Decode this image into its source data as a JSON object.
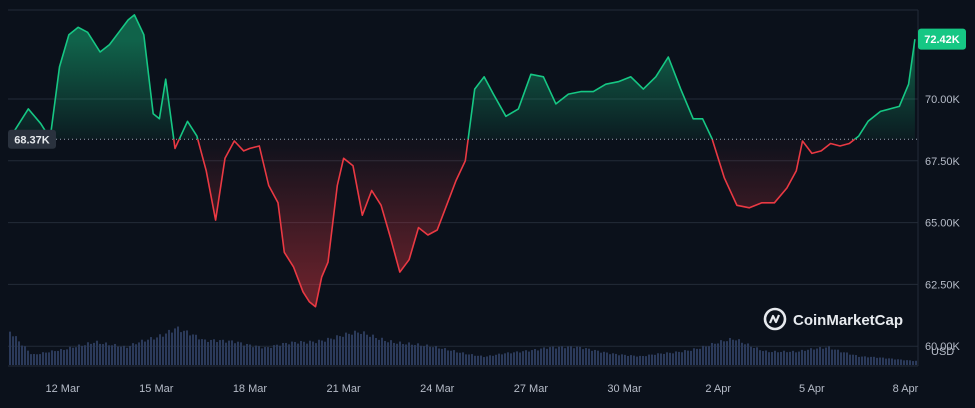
{
  "chart_data": {
    "type": "area",
    "subtitle": "",
    "currency_label": "USD",
    "reference_value": 68370,
    "reference_label": "68.37K",
    "current_value": 72420,
    "current_label": "72.42K",
    "y_axis": {
      "ticks": [
        60000,
        62500,
        65000,
        67500,
        70000
      ],
      "tick_labels": [
        "60.00K",
        "62.50K",
        "65.00K",
        "67.50K",
        "70.00K"
      ],
      "ylim": [
        59200,
        73600
      ]
    },
    "x_axis": {
      "tick_labels": [
        "12 Mar",
        "15 Mar",
        "18 Mar",
        "21 Mar",
        "24 Mar",
        "27 Mar",
        "30 Mar",
        "2 Apr",
        "5 Apr",
        "8 Apr"
      ],
      "tick_days": [
        2,
        5,
        8,
        11,
        14,
        17,
        20,
        23,
        26,
        29
      ],
      "xlim": [
        0.25,
        29.4
      ]
    },
    "series": [
      {
        "values_x_day": [
          0.4,
          0.9,
          1.3,
          1.6,
          1.9,
          2.2,
          2.5,
          2.8,
          3.2,
          3.5,
          3.8,
          4.1,
          4.3,
          4.6,
          4.9,
          5.1,
          5.3,
          5.6,
          6.0,
          6.3,
          6.6,
          6.9,
          7.2,
          7.5,
          7.8,
          8.0,
          8.3,
          8.6,
          8.9,
          9.1,
          9.4,
          9.7,
          9.9,
          10.1,
          10.3,
          10.5,
          10.8,
          11.0,
          11.3,
          11.6,
          11.9,
          12.2,
          12.5,
          12.8,
          13.1,
          13.4,
          13.7,
          14.0,
          14.3,
          14.6,
          14.9,
          15.2,
          15.5,
          15.8,
          16.2,
          16.6,
          17.0,
          17.4,
          17.8,
          18.2,
          18.6,
          19.0,
          19.4,
          19.8,
          20.2,
          20.6,
          21.0,
          21.4,
          21.8,
          22.2,
          22.5,
          22.8,
          23.2,
          23.6,
          24.0,
          24.4,
          24.8,
          25.2,
          25.5,
          25.7,
          26.0,
          26.3,
          26.6,
          26.9,
          27.2,
          27.5,
          27.8,
          28.2,
          28.5,
          28.8,
          29.1,
          29.3
        ],
        "values_y": [
          68600,
          69600,
          69000,
          68400,
          71300,
          72600,
          72900,
          72700,
          71900,
          72200,
          72700,
          73200,
          73400,
          72600,
          69400,
          69200,
          70800,
          68000,
          69100,
          68500,
          67100,
          65100,
          67600,
          68300,
          67900,
          68000,
          68100,
          66500,
          65800,
          63800,
          63200,
          62200,
          61800,
          61600,
          62800,
          63400,
          66500,
          67600,
          67300,
          65300,
          66300,
          65700,
          64400,
          63000,
          63500,
          64800,
          64500,
          64700,
          65700,
          66700,
          67500,
          70400,
          70900,
          70200,
          69300,
          69600,
          71000,
          70900,
          69800,
          70200,
          70300,
          70300,
          70600,
          70700,
          70900,
          70400,
          70900,
          71700,
          70400,
          69200,
          69200,
          68400,
          66800,
          65700,
          65600,
          65800,
          65800,
          66400,
          67100,
          68300,
          67800,
          67900,
          68200,
          68100,
          68200,
          68500,
          69100,
          69500,
          69600,
          69700,
          70600,
          72420
        ]
      }
    ],
    "volume": {
      "values_x_day": [
        0.3,
        1.0,
        2.0,
        3.0,
        4.0,
        5.0,
        5.6,
        6.5,
        7.5,
        8.5,
        9.5,
        10.5,
        11.5,
        12.5,
        13.5,
        14.5,
        15.5,
        16.5,
        17.5,
        18.5,
        19.5,
        20.5,
        21.5,
        22.5,
        23.5,
        24.5,
        25.5,
        26.5,
        27.5,
        28.5,
        29.4
      ],
      "values": [
        0.85,
        0.25,
        0.35,
        0.6,
        0.4,
        0.7,
        0.95,
        0.55,
        0.6,
        0.4,
        0.55,
        0.65,
        0.75,
        0.6,
        0.45,
        0.35,
        0.2,
        0.3,
        0.45,
        0.4,
        0.3,
        0.2,
        0.3,
        0.45,
        0.6,
        0.35,
        0.3,
        0.45,
        0.2,
        0.15,
        0.1
      ]
    },
    "colors": {
      "up": "#16c784",
      "down": "#ea3943",
      "background": "#0b111b",
      "grid": "#232b38",
      "volume": "#2b3a5a",
      "badge_current": "#16c784",
      "badge_reference": "#2a323e"
    },
    "grid": true
  },
  "watermark": {
    "brand_text": "CoinMarketCap",
    "icon": "coinmarketcap-logo-icon"
  }
}
